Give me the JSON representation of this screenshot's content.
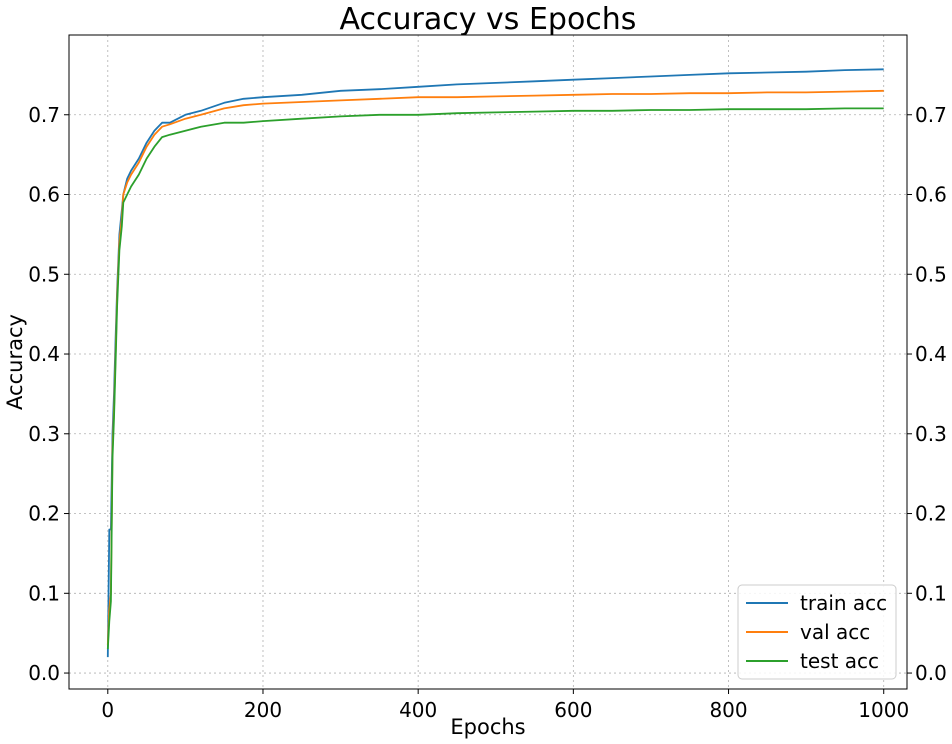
{
  "chart_data": {
    "type": "line",
    "title": "Accuracy vs Epochs",
    "xlabel": "Epochs",
    "ylabel": "Accuracy",
    "xlim": [
      -50,
      1030
    ],
    "ylim": [
      -0.02,
      0.8
    ],
    "xticks": [
      0,
      200,
      400,
      600,
      800,
      1000
    ],
    "xtick_labels": [
      "0",
      "200",
      "400",
      "600",
      "800",
      "1000"
    ],
    "yticks": [
      0.0,
      0.1,
      0.2,
      0.3,
      0.4,
      0.5,
      0.6,
      0.7
    ],
    "ytick_labels": [
      "0.0",
      "0.1",
      "0.2",
      "0.3",
      "0.4",
      "0.5",
      "0.6",
      "0.7"
    ],
    "right_yticks": true,
    "grid": true,
    "legend_position": "lower-right",
    "series": [
      {
        "name": "train acc",
        "color": "#1f77b4",
        "x": [
          0,
          2,
          4,
          6,
          8,
          10,
          12,
          15,
          18,
          20,
          25,
          30,
          40,
          50,
          60,
          70,
          80,
          100,
          120,
          150,
          175,
          200,
          250,
          300,
          350,
          400,
          450,
          500,
          550,
          600,
          650,
          700,
          750,
          800,
          850,
          900,
          950,
          1000
        ],
        "y": [
          0.02,
          0.18,
          0.18,
          0.3,
          0.35,
          0.42,
          0.48,
          0.55,
          0.58,
          0.6,
          0.62,
          0.63,
          0.645,
          0.665,
          0.68,
          0.69,
          0.69,
          0.7,
          0.705,
          0.715,
          0.72,
          0.722,
          0.725,
          0.73,
          0.732,
          0.735,
          0.738,
          0.74,
          0.742,
          0.744,
          0.746,
          0.748,
          0.75,
          0.752,
          0.753,
          0.754,
          0.756,
          0.757
        ]
      },
      {
        "name": "val acc",
        "color": "#ff7f0e",
        "x": [
          0,
          2,
          4,
          6,
          8,
          10,
          12,
          15,
          18,
          20,
          25,
          30,
          40,
          50,
          60,
          70,
          80,
          100,
          120,
          150,
          175,
          200,
          250,
          300,
          350,
          400,
          450,
          500,
          550,
          600,
          650,
          700,
          750,
          800,
          850,
          900,
          950,
          1000
        ],
        "y": [
          0.035,
          0.08,
          0.1,
          0.28,
          0.33,
          0.4,
          0.47,
          0.54,
          0.57,
          0.6,
          0.615,
          0.625,
          0.64,
          0.66,
          0.675,
          0.685,
          0.688,
          0.695,
          0.7,
          0.708,
          0.712,
          0.714,
          0.716,
          0.718,
          0.72,
          0.722,
          0.722,
          0.723,
          0.724,
          0.725,
          0.726,
          0.726,
          0.727,
          0.727,
          0.728,
          0.728,
          0.729,
          0.73
        ]
      },
      {
        "name": "test acc",
        "color": "#2ca02c",
        "x": [
          0,
          2,
          4,
          6,
          8,
          10,
          12,
          15,
          18,
          20,
          25,
          30,
          40,
          50,
          60,
          70,
          80,
          100,
          120,
          150,
          175,
          200,
          250,
          300,
          350,
          400,
          450,
          500,
          550,
          600,
          650,
          700,
          750,
          800,
          850,
          900,
          950,
          1000
        ],
        "y": [
          0.03,
          0.065,
          0.09,
          0.27,
          0.32,
          0.39,
          0.46,
          0.53,
          0.56,
          0.59,
          0.6,
          0.61,
          0.625,
          0.645,
          0.66,
          0.672,
          0.675,
          0.68,
          0.685,
          0.69,
          0.69,
          0.692,
          0.695,
          0.698,
          0.7,
          0.7,
          0.702,
          0.703,
          0.704,
          0.705,
          0.705,
          0.706,
          0.706,
          0.707,
          0.707,
          0.707,
          0.708,
          0.708
        ]
      }
    ]
  }
}
